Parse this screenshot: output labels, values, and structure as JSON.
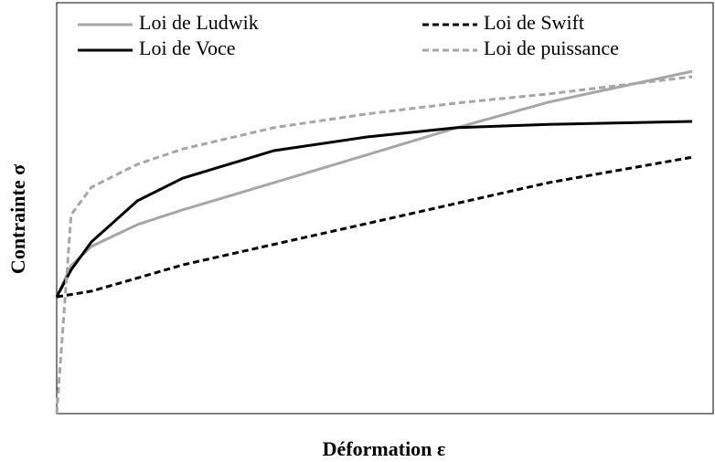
{
  "chart_data": {
    "type": "line",
    "x_label": "Déformation ε",
    "y_label": "Contrainte σ",
    "x": [
      0,
      0.022,
      0.053,
      0.123,
      0.192,
      0.331,
      0.471,
      0.61,
      0.749,
      0.968
    ],
    "xlim": [
      0,
      1
    ],
    "ylim": [
      0,
      1
    ],
    "series": [
      {
        "name": "Loi de Ludwik",
        "color": "#a6a6a6",
        "dash": false,
        "values": [
          0.284,
          0.36,
          0.407,
          0.46,
          0.496,
          0.562,
          0.629,
          0.696,
          0.758,
          0.833
        ]
      },
      {
        "name": "Loi de Swift",
        "color": "#000000",
        "dash": true,
        "values": [
          0.284,
          0.29,
          0.298,
          0.33,
          0.362,
          0.412,
          0.462,
          0.512,
          0.562,
          0.624
        ]
      },
      {
        "name": "Loi de Voce",
        "color": "#000000",
        "dash": false,
        "values": [
          0.284,
          0.35,
          0.418,
          0.518,
          0.573,
          0.64,
          0.673,
          0.696,
          0.704,
          0.711
        ]
      },
      {
        "name": "Loi de puissance",
        "color": "#a6a6a6",
        "dash": true,
        "values": [
          0,
          0.484,
          0.551,
          0.607,
          0.644,
          0.696,
          0.729,
          0.756,
          0.778,
          0.82
        ]
      }
    ]
  }
}
